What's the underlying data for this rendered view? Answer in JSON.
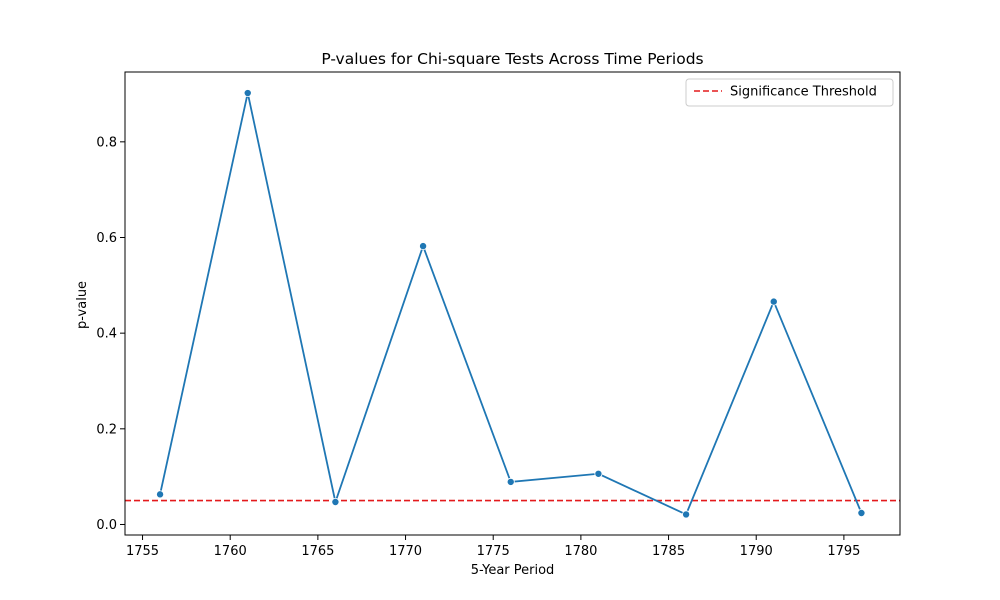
{
  "chart_data": {
    "type": "line",
    "title": "P-values for Chi-square Tests Across Time Periods",
    "xlabel": "5-Year Period",
    "ylabel": "p-value",
    "xlim": [
      1754.0,
      1798.2
    ],
    "ylim": [
      -0.022,
      0.946
    ],
    "xticks": [
      1755,
      1760,
      1765,
      1770,
      1775,
      1780,
      1785,
      1790,
      1795
    ],
    "yticks": [
      0.0,
      0.2,
      0.4,
      0.6,
      0.8
    ],
    "grid": false,
    "legend_position": "top-right",
    "series": [
      {
        "x": [
          1756,
          1761,
          1766,
          1771,
          1776,
          1781,
          1786,
          1791,
          1796
        ],
        "y": [
          0.063,
          0.902,
          0.047,
          0.582,
          0.089,
          0.106,
          0.021,
          0.466,
          0.024
        ],
        "color": "#1f77b4"
      }
    ],
    "reference_lines": [
      {
        "name": "Significance Threshold",
        "y": 0.05,
        "color": "#e41a1c",
        "style": "dashed"
      }
    ]
  }
}
